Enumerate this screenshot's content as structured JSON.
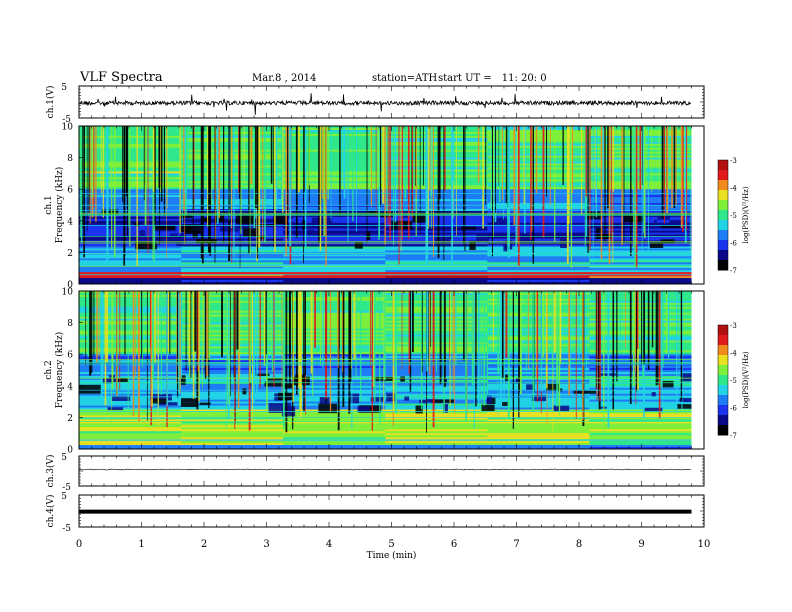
{
  "header": {
    "title": "VLF  Spectra",
    "date": "Mar.8  , 2014",
    "station": "station=ATH",
    "start_label": "start  UT  =",
    "start_time": "11: 20: 0"
  },
  "chart_data": [
    {
      "type": "line",
      "id": "ch1",
      "ylabel": "ch.1(V)",
      "yticks": [
        "5",
        "-5"
      ],
      "ylim": [
        -5,
        5
      ],
      "xlim": [
        0,
        10
      ],
      "series_color": "#000000",
      "description_of_data": "noisy waveform around 0 V with sferic spikes, record ends near 9.8 min"
    },
    {
      "type": "heatmap",
      "id": "ch1-spec",
      "ylabel": "ch.1\nFrequency  (kHz)",
      "ylabel_lines": [
        "ch.1",
        "Frequency  (kHz)"
      ],
      "yticks": [
        "0",
        "2",
        "4",
        "6",
        "8",
        "10"
      ],
      "ylim": [
        0,
        10
      ],
      "xlim": [
        0,
        10
      ],
      "record_end_min": 9.8,
      "colorbar": {
        "label": "log(PSD)(V²/Hz)",
        "ticks": [
          "-3",
          "-4",
          "-5",
          "-6",
          "-7"
        ],
        "range": [
          -7,
          -3
        ]
      }
    },
    {
      "type": "heatmap",
      "id": "ch2-spec",
      "ylabel_lines": [
        "ch.2",
        "Frequency  (kHz)"
      ],
      "yticks": [
        "0",
        "2",
        "4",
        "6",
        "8",
        "10"
      ],
      "ylim": [
        0,
        10
      ],
      "xlim": [
        0,
        10
      ],
      "record_end_min": 9.8,
      "colorbar": {
        "label": "log(PSD)(V²/Hz)",
        "ticks": [
          "-3",
          "-4",
          "-5",
          "-6",
          "-7"
        ],
        "range": [
          -7,
          -3
        ]
      }
    },
    {
      "type": "line",
      "id": "ch3",
      "ylabel": "ch.3(V)",
      "yticks": [
        "5",
        "-5"
      ],
      "ylim": [
        -5,
        5
      ],
      "xlim": [
        0,
        10
      ],
      "level": 0
    },
    {
      "type": "line",
      "id": "ch4",
      "ylabel": "ch.4(V)",
      "yticks": [
        "5",
        "-5"
      ],
      "ylim": [
        -5,
        5
      ],
      "xlim": [
        0,
        10
      ],
      "level": 0
    }
  ],
  "xaxis": {
    "label": "Time  (min)",
    "ticks": [
      "0",
      "1",
      "2",
      "3",
      "4",
      "5",
      "6",
      "7",
      "8",
      "9",
      "10"
    ]
  },
  "colormap": [
    "#000000",
    "#0a0a88",
    "#1a33ee",
    "#1e7df5",
    "#22d3e6",
    "#2ee88a",
    "#7ef03a",
    "#e8e020",
    "#f08a1a",
    "#e01a1a",
    "#b01010"
  ]
}
